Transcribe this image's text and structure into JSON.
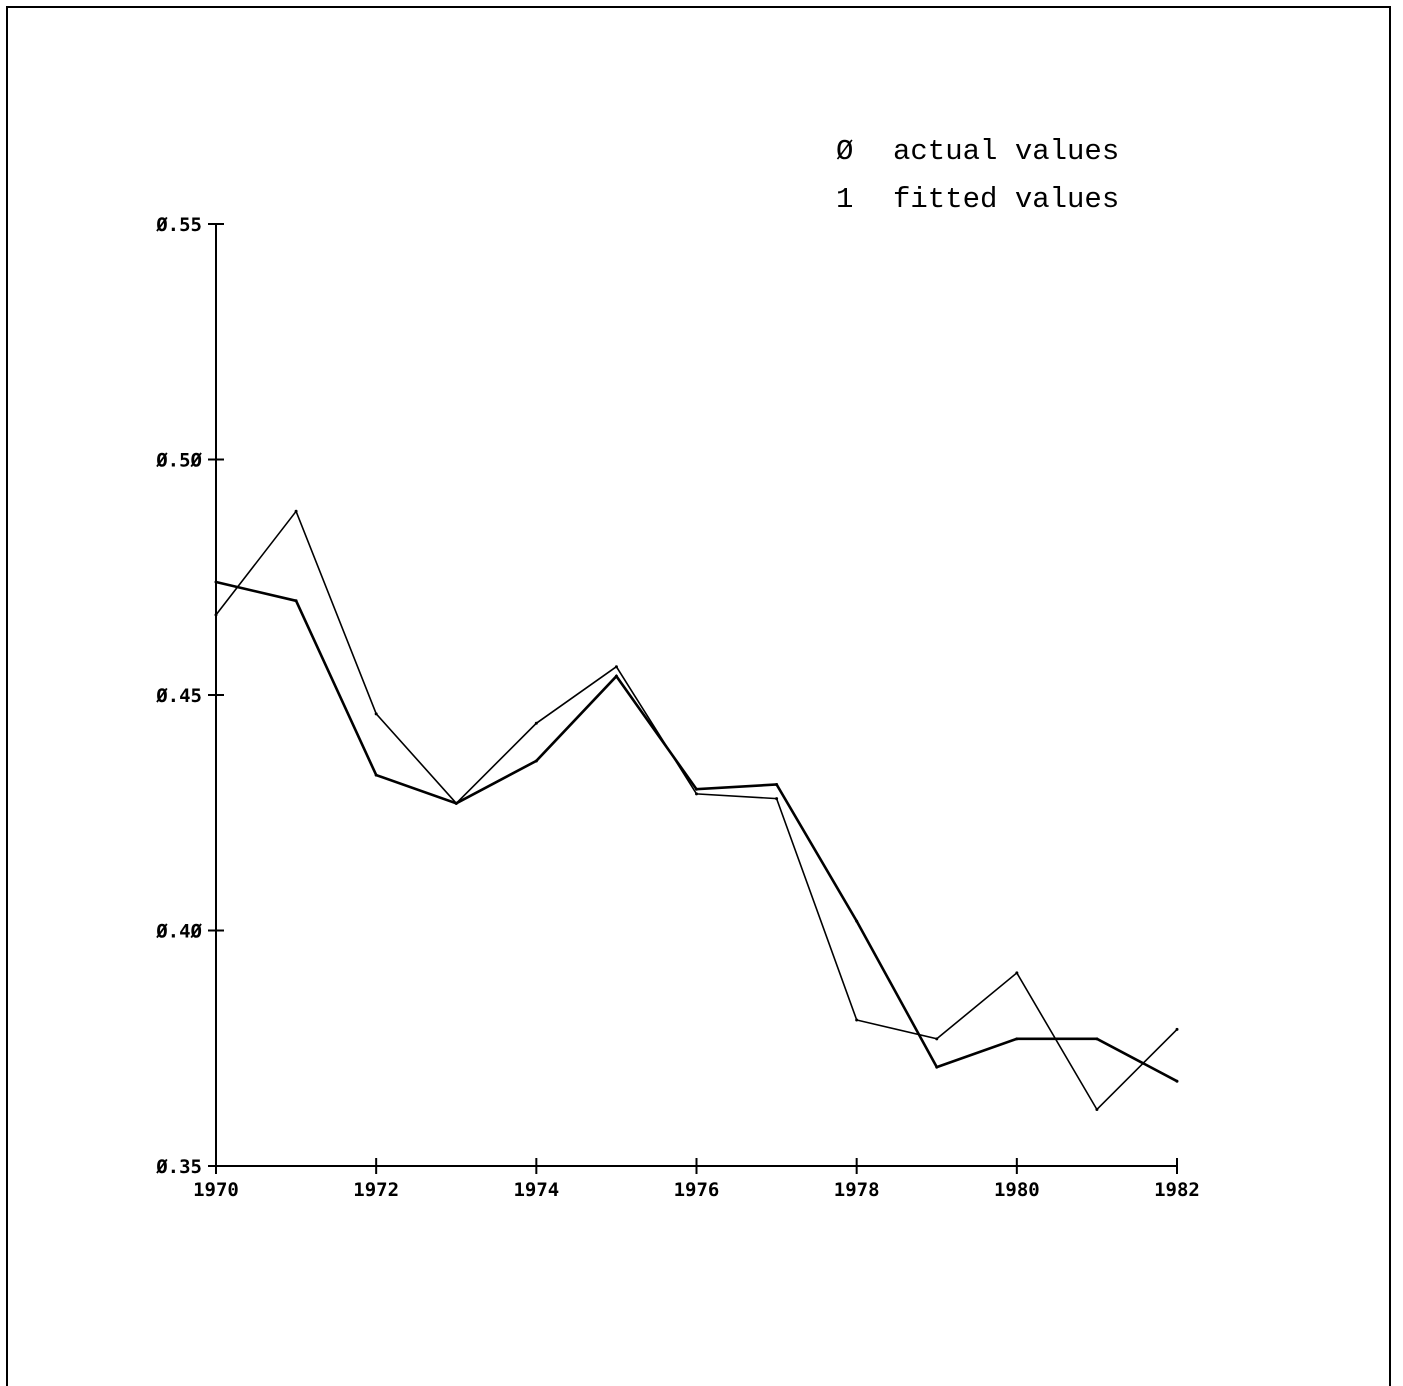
{
  "chart_data": {
    "type": "line",
    "title": "",
    "xlabel": "",
    "ylabel": "",
    "xlim": [
      1970,
      1982
    ],
    "ylim": [
      0.35,
      0.55
    ],
    "x_ticks": [
      1970,
      1972,
      1974,
      1976,
      1978,
      1980,
      1982
    ],
    "x_tick_labels": [
      "1970",
      "1972",
      "1974",
      "1976",
      "1978",
      "1980",
      "1982"
    ],
    "y_ticks": [
      0.35,
      0.4,
      0.45,
      0.5,
      0.55
    ],
    "y_tick_labels": [
      "Ø.35",
      "Ø.4Ø",
      "Ø.45",
      "Ø.5Ø",
      "Ø.55"
    ],
    "grid": false,
    "legend_position": "top-right",
    "x": [
      1970,
      1971,
      1972,
      1973,
      1974,
      1975,
      1976,
      1977,
      1978,
      1979,
      1980,
      1981,
      1982
    ],
    "series": [
      {
        "name": "actual values",
        "marker": "Ø",
        "values": [
          0.467,
          0.489,
          0.446,
          0.427,
          0.444,
          0.456,
          0.429,
          0.428,
          0.381,
          0.377,
          0.391,
          0.362,
          0.379
        ]
      },
      {
        "name": "fitted values",
        "marker": "1",
        "values": [
          0.474,
          0.47,
          0.433,
          0.427,
          0.436,
          0.454,
          0.43,
          0.431,
          0.402,
          0.371,
          0.377,
          0.377,
          0.368
        ]
      }
    ]
  },
  "legend": {
    "entries": [
      {
        "symbol": "Ø",
        "label": "actual values"
      },
      {
        "symbol": "1",
        "label": "fitted values"
      }
    ]
  }
}
